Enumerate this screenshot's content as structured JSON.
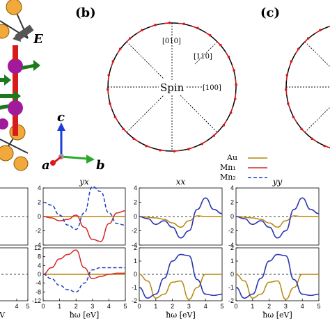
{
  "figure": {
    "panel_b_label": "(b)",
    "panel_c_label": "(c)",
    "field_label": "E",
    "axis_c": "c",
    "axis_a": "a",
    "axis_b": "b",
    "dir_010": "[010]",
    "dir_110": "[110]",
    "dir_100": "[100]",
    "spin_label": "Spin",
    "legend": [
      "Au",
      "Mn₁",
      "Mn₂"
    ],
    "colors": {
      "au": "#b8860b",
      "mn1": "#d62728",
      "mn2": "#1f3fbf",
      "atom_gold": "#f2a93b",
      "atom_purple": "#a01a9a",
      "arrow_green": "#1b7a1b",
      "bond_red": "#d81b1b"
    }
  },
  "chart_data": [
    {
      "type": "line",
      "title": "",
      "panel": "left-top",
      "ylim": [
        -4,
        4
      ],
      "yticks": [],
      "xlim": [
        0,
        5
      ],
      "xticks": []
    },
    {
      "type": "line",
      "title": "yx",
      "panel": "col2-top",
      "ylim": [
        -4,
        4
      ],
      "yticks": [
        "4",
        "2",
        "0",
        "-2",
        "-4"
      ],
      "xlim": [
        0,
        5
      ],
      "xticks": [],
      "series": [
        {
          "name": "Au",
          "x": [
            0,
            5
          ],
          "y": [
            0,
            0
          ]
        },
        {
          "name": "Mn₁",
          "x": [
            0,
            0.5,
            1,
            1.5,
            2,
            2.5,
            3,
            3.5,
            4,
            4.5,
            5
          ],
          "y": [
            0,
            -0.2,
            -0.6,
            -0.4,
            0.2,
            -1.5,
            -3.2,
            -3.5,
            -1,
            0.5,
            0.8
          ]
        },
        {
          "name": "Mn₂",
          "x": [
            0,
            0.5,
            1,
            1.5,
            2,
            2.5,
            3,
            3.5,
            4,
            4.5,
            5
          ],
          "y": [
            2,
            1.6,
            0.2,
            -1.2,
            -1.8,
            0.5,
            4.2,
            3.5,
            0.5,
            -1,
            -1.2
          ]
        }
      ]
    },
    {
      "type": "line",
      "title": "xx",
      "panel": "col3-top",
      "ylim": [
        -4,
        4
      ],
      "yticks": [
        "4",
        "2",
        "0",
        "-2",
        "-4"
      ],
      "xlim": [
        0,
        5
      ],
      "xticks": [],
      "series": [
        {
          "name": "Au",
          "x": [
            0,
            1,
            1.5,
            2,
            2.5,
            3,
            3.5,
            4,
            5
          ],
          "y": [
            0,
            -0.2,
            -0.4,
            -0.9,
            -1.5,
            -0.6,
            0.1,
            0,
            0
          ]
        },
        {
          "name": "Mn₁",
          "x": [
            0,
            0.5,
            1,
            1.5,
            2,
            2.5,
            3,
            3.5,
            4,
            4.5,
            5
          ],
          "y": [
            0,
            -0.3,
            -1.1,
            -0.6,
            -1.5,
            -3,
            -2,
            1,
            2.6,
            1,
            0.4
          ]
        },
        {
          "name": "Mn₂",
          "x": [
            0,
            0.5,
            1,
            1.5,
            2,
            2.5,
            3,
            3.5,
            4,
            4.5,
            5
          ],
          "y": [
            0,
            -0.3,
            -1.1,
            -0.6,
            -1.5,
            -3,
            -2,
            1,
            2.6,
            1,
            0.4
          ]
        }
      ]
    },
    {
      "type": "line",
      "title": "yy",
      "panel": "col4-top",
      "ylim": [
        -4,
        4
      ],
      "yticks": [
        "4",
        "2",
        "0",
        "-2",
        "-4"
      ],
      "xlim": [
        0,
        5
      ],
      "xticks": [],
      "series": [
        {
          "name": "Au",
          "x": [
            0,
            1,
            1.5,
            2,
            2.5,
            3,
            3.5,
            4,
            5
          ],
          "y": [
            0,
            -0.2,
            -0.4,
            -0.9,
            -1.5,
            -0.6,
            0.1,
            0,
            0
          ]
        },
        {
          "name": "Mn₁",
          "x": [
            0,
            0.5,
            1,
            1.5,
            2,
            2.5,
            3,
            3.5,
            4,
            4.5,
            5
          ],
          "y": [
            0,
            -0.3,
            -1.1,
            -0.6,
            -1.5,
            -3,
            -2,
            1,
            2.6,
            1,
            0.4
          ]
        },
        {
          "name": "Mn₂",
          "x": [
            0,
            0.5,
            1,
            1.5,
            2,
            2.5,
            3,
            3.5,
            4,
            4.5,
            5
          ],
          "y": [
            0,
            -0.3,
            -1.1,
            -0.6,
            -1.5,
            -3,
            -2,
            1,
            2.6,
            1,
            0.4
          ]
        }
      ]
    },
    {
      "type": "line",
      "title": "",
      "panel": "left-bottom",
      "ylim": [
        -2,
        2
      ],
      "yticks": [],
      "xlim": [
        0,
        5
      ],
      "xticks": [
        "4",
        "5"
      ],
      "xlabel": "eV"
    },
    {
      "type": "line",
      "title": "",
      "panel": "col2-bottom",
      "ylim": [
        -12,
        12
      ],
      "yticks": [
        "12",
        "8",
        "4",
        "0",
        "-4",
        "-8",
        "-12"
      ],
      "xlim": [
        0,
        5
      ],
      "xticks": [
        "0",
        "1",
        "2",
        "3",
        "4",
        "5"
      ],
      "xlabel": "ħω [eV]",
      "series": [
        {
          "name": "Au",
          "x": [
            0,
            5
          ],
          "y": [
            0,
            0
          ]
        },
        {
          "name": "Mn₁",
          "x": [
            0,
            0.5,
            1,
            1.5,
            2,
            2.5,
            3,
            3.5,
            4,
            4.5,
            5
          ],
          "y": [
            0,
            3,
            7,
            9,
            11,
            3,
            -2,
            -1,
            0,
            0.5,
            0.5
          ]
        },
        {
          "name": "Mn₂",
          "x": [
            0,
            0.5,
            1,
            1.5,
            2,
            2.5,
            3,
            3.5,
            4,
            4.5,
            5
          ],
          "y": [
            0,
            -2,
            -5,
            -7,
            -8,
            -4,
            2,
            3,
            3,
            3,
            3
          ]
        }
      ]
    },
    {
      "type": "line",
      "title": "",
      "panel": "col3-bottom",
      "ylim": [
        -2,
        2
      ],
      "yticks": [
        "2",
        "1",
        "0",
        "-1",
        "-2"
      ],
      "xlim": [
        0,
        5
      ],
      "xticks": [
        "0",
        "1",
        "2",
        "3",
        "4",
        "5"
      ],
      "xlabel": "ħω [eV]",
      "series": [
        {
          "name": "Au",
          "x": [
            0,
            0.5,
            1,
            1.5,
            2,
            2.5,
            3,
            3.5,
            4,
            4.5,
            5
          ],
          "y": [
            0,
            -0.5,
            -1.8,
            -1.5,
            -0.6,
            -0.5,
            -1.9,
            -1,
            0,
            0,
            0
          ]
        },
        {
          "name": "Mn₁",
          "x": [
            0,
            0.5,
            1,
            1.5,
            2,
            2.5,
            3,
            3.5,
            4,
            4.5,
            5
          ],
          "y": [
            -1,
            -1.8,
            -1.5,
            -0.3,
            1,
            1.5,
            1.4,
            -0.4,
            -1.5,
            -1.6,
            -1.5
          ]
        },
        {
          "name": "Mn₂",
          "x": [
            0,
            0.5,
            1,
            1.5,
            2,
            2.5,
            3,
            3.5,
            4,
            4.5,
            5
          ],
          "y": [
            -1,
            -1.8,
            -1.5,
            -0.3,
            1,
            1.5,
            1.4,
            -0.4,
            -1.5,
            -1.6,
            -1.5
          ]
        }
      ]
    },
    {
      "type": "line",
      "title": "",
      "panel": "col4-bottom",
      "ylim": [
        -2,
        2
      ],
      "yticks": [
        "2",
        "1",
        "0",
        "-1",
        "-2"
      ],
      "xlim": [
        0,
        5
      ],
      "xticks": [
        "0",
        "1",
        "2",
        "3",
        "4",
        "5"
      ],
      "xlabel": "ħω [eV]",
      "series": [
        {
          "name": "Au",
          "x": [
            0,
            0.5,
            1,
            1.5,
            2,
            2.5,
            3,
            3.5,
            4,
            4.5,
            5
          ],
          "y": [
            0,
            -0.5,
            -1.8,
            -1.5,
            -0.6,
            -0.5,
            -1.9,
            -1,
            0,
            0,
            0
          ]
        },
        {
          "name": "Mn₁",
          "x": [
            0,
            0.5,
            1,
            1.5,
            2,
            2.5,
            3,
            3.5,
            4,
            4.5,
            5
          ],
          "y": [
            -1,
            -1.8,
            -1.5,
            -0.3,
            1,
            1.5,
            1.4,
            -0.4,
            -1.5,
            -1.6,
            -1.5
          ]
        },
        {
          "name": "Mn₂",
          "x": [
            0,
            0.5,
            1,
            1.5,
            2,
            2.5,
            3,
            3.5,
            4,
            4.5,
            5
          ],
          "y": [
            -1,
            -1.8,
            -1.5,
            -0.3,
            1,
            1.5,
            1.4,
            -0.4,
            -1.5,
            -1.6,
            -1.5
          ]
        }
      ]
    }
  ]
}
